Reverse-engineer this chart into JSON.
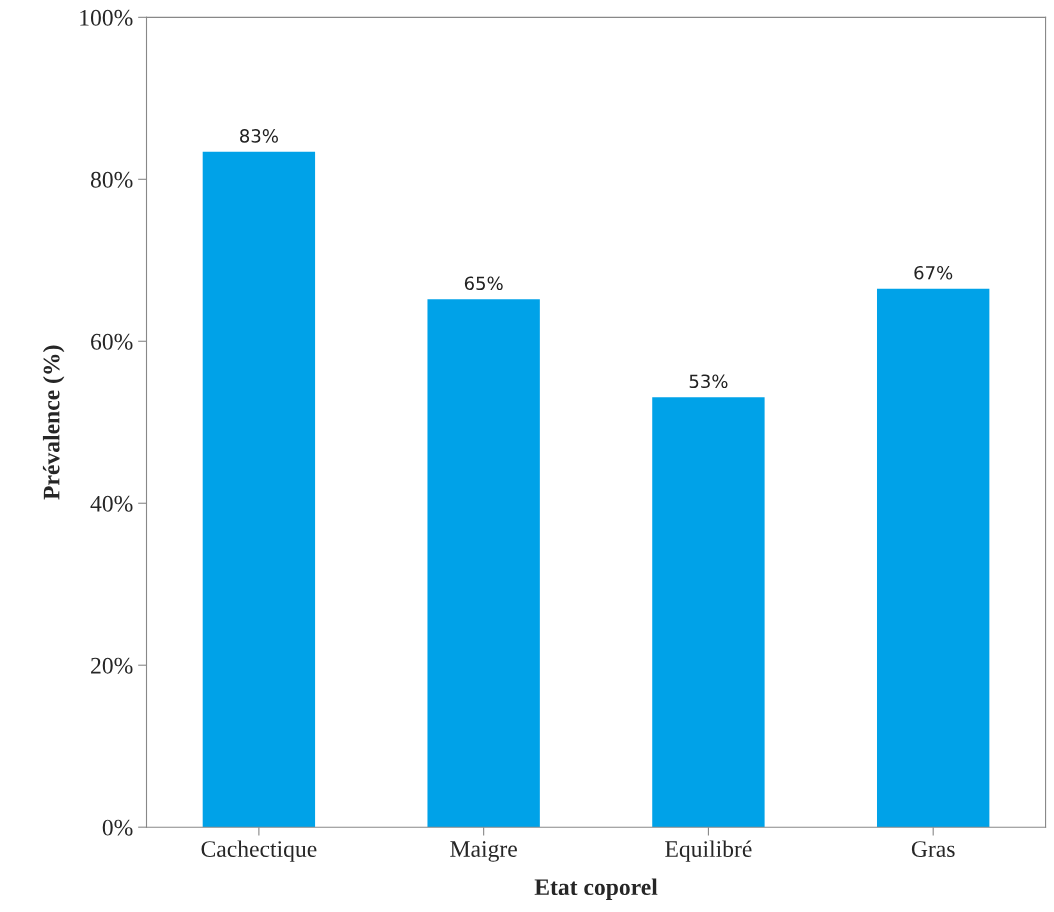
{
  "chart_data": {
    "type": "bar",
    "xlabel": "Etat coporel",
    "ylabel": "Prévalence (%)",
    "categories": [
      "Cachectique",
      "Maigre",
      "Equilibré",
      "Gras"
    ],
    "values": [
      83.4,
      65.2,
      53.1,
      66.5
    ],
    "value_labels": [
      "83%",
      "65%",
      "53%",
      "67%"
    ],
    "color": "#00a2e8",
    "ylim": [
      0,
      100
    ],
    "yticks": [
      {
        "value": 0,
        "label": "0%"
      },
      {
        "value": 20,
        "label": "20%"
      },
      {
        "value": 40,
        "label": "40%"
      },
      {
        "value": 60,
        "label": "60%"
      },
      {
        "value": 80,
        "label": "80%"
      },
      {
        "value": 100,
        "label": "100%"
      }
    ],
    "grid": false,
    "legend": false
  }
}
